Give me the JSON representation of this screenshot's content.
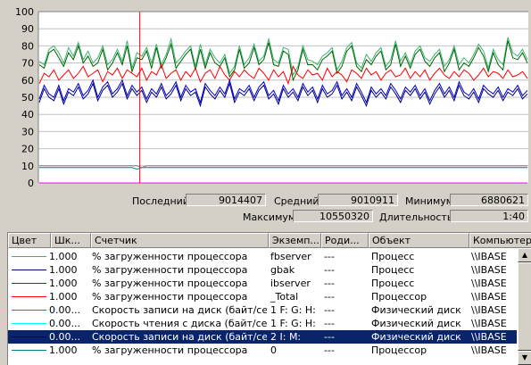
{
  "chart_data": {
    "type": "line",
    "ylim": [
      0,
      100
    ],
    "yticks": [
      "100",
      "90",
      "80",
      "70",
      "60",
      "50",
      "40",
      "30",
      "20",
      "10",
      "0"
    ],
    "grid": true,
    "time_marker_fraction": 0.207,
    "series": [
      {
        "color": "#3cb371",
        "values": [
          71,
          69,
          78,
          80,
          76,
          70,
          79,
          74,
          82,
          72,
          77,
          70,
          73,
          80,
          69,
          72,
          78,
          71,
          83,
          67,
          76,
          74,
          79,
          70,
          81,
          69,
          75,
          84,
          70,
          73,
          77,
          80,
          68,
          81,
          69,
          78,
          73,
          70,
          75,
          64,
          68,
          80,
          69,
          73,
          81,
          71,
          74,
          84,
          72,
          70,
          79,
          78,
          63,
          68,
          80,
          72,
          71,
          69,
          74,
          76,
          79,
          66,
          71,
          79,
          82,
          70,
          67,
          75,
          71,
          76,
          79,
          68,
          72,
          83,
          71,
          76,
          69,
          77,
          80,
          73,
          71,
          75,
          78,
          68,
          72,
          80,
          69,
          73,
          70,
          75,
          81,
          77,
          67,
          78,
          72,
          69,
          85,
          76,
          74,
          78,
          72
        ]
      },
      {
        "color": "#006400",
        "values": [
          69,
          67,
          76,
          78,
          73,
          68,
          76,
          72,
          80,
          70,
          74,
          68,
          70,
          78,
          66,
          70,
          76,
          69,
          80,
          65,
          73,
          72,
          77,
          67,
          79,
          67,
          73,
          81,
          67,
          71,
          75,
          78,
          66,
          78,
          67,
          76,
          70,
          68,
          73,
          62,
          66,
          78,
          67,
          70,
          79,
          69,
          72,
          82,
          69,
          68,
          77,
          75,
          60,
          66,
          78,
          69,
          69,
          66,
          72,
          74,
          77,
          64,
          68,
          77,
          80,
          68,
          65,
          72,
          69,
          74,
          77,
          66,
          69,
          81,
          68,
          74,
          67,
          75,
          78,
          71,
          68,
          73,
          76,
          65,
          70,
          78,
          66,
          70,
          68,
          73,
          79,
          74,
          65,
          76,
          69,
          66,
          83,
          73,
          72,
          76,
          70
        ]
      },
      {
        "color": "#ff0000",
        "values": [
          58,
          64,
          62,
          66,
          60,
          63,
          66,
          61,
          64,
          68,
          62,
          64,
          66,
          59,
          65,
          63,
          67,
          61,
          66,
          64,
          62,
          67,
          60,
          65,
          63,
          69,
          61,
          64,
          66,
          60,
          65,
          62,
          67,
          59,
          64,
          66,
          61,
          68,
          63,
          60,
          65,
          62,
          66,
          63,
          61,
          67,
          64,
          60,
          66,
          62,
          65,
          58,
          68,
          63,
          61,
          66,
          63,
          64,
          60,
          67,
          62,
          65,
          63,
          59,
          66,
          64,
          61,
          67,
          63,
          65,
          60,
          64,
          66,
          62,
          63,
          67,
          61,
          65,
          62,
          66,
          60,
          64,
          67,
          63,
          61,
          65,
          62,
          66,
          64,
          60,
          63,
          67,
          62,
          65,
          64,
          61,
          66,
          62,
          63,
          65,
          61
        ]
      },
      {
        "color": "#000080",
        "values": [
          47,
          55,
          50,
          48,
          55,
          46,
          53,
          51,
          56,
          49,
          52,
          58,
          48,
          54,
          57,
          50,
          53,
          58,
          49,
          55,
          51,
          54,
          47,
          53,
          50,
          56,
          49,
          52,
          57,
          48,
          55,
          51,
          53,
          45,
          56,
          52,
          49,
          54,
          50,
          58,
          47,
          53,
          51,
          55,
          48,
          54,
          57,
          49,
          52,
          46,
          55,
          50,
          53,
          48,
          56,
          51,
          54,
          47,
          55,
          50,
          52,
          57,
          49,
          53,
          48,
          56,
          51,
          45,
          54,
          50,
          53,
          49,
          56,
          52,
          47,
          54,
          51,
          55,
          49,
          53,
          46,
          52,
          56,
          50,
          54,
          48,
          57,
          51,
          49,
          53,
          47,
          55,
          52,
          50,
          54,
          48,
          53,
          51,
          55,
          49,
          52
        ]
      },
      {
        "color": "#0000cd",
        "values": [
          49,
          57,
          52,
          50,
          57,
          48,
          55,
          53,
          58,
          51,
          54,
          60,
          50,
          56,
          59,
          52,
          55,
          60,
          51,
          57,
          53,
          56,
          49,
          55,
          52,
          58,
          51,
          54,
          59,
          50,
          57,
          53,
          55,
          47,
          58,
          54,
          51,
          56,
          52,
          60,
          49,
          55,
          53,
          57,
          50,
          56,
          59,
          51,
          54,
          48,
          57,
          52,
          55,
          50,
          58,
          53,
          56,
          49,
          57,
          52,
          54,
          59,
          51,
          55,
          50,
          58,
          53,
          47,
          56,
          52,
          55,
          51,
          58,
          54,
          49,
          56,
          53,
          57,
          51,
          55,
          48,
          54,
          58,
          52,
          56,
          50,
          59,
          53,
          51,
          55,
          49,
          57,
          54,
          52,
          56,
          50,
          55,
          53,
          57,
          51,
          54
        ]
      },
      {
        "color": "#008080",
        "values": [
          9,
          9,
          9,
          9,
          9,
          9,
          9,
          9,
          9,
          9,
          9,
          9,
          9,
          9,
          9,
          9,
          9,
          9,
          9,
          9,
          8,
          9,
          9,
          9,
          9,
          9,
          9,
          9,
          9,
          9,
          9,
          9,
          9,
          9,
          9,
          9,
          9,
          9,
          9,
          9,
          9,
          9,
          9,
          9,
          9,
          9,
          9,
          9,
          9,
          9,
          9,
          9,
          9,
          9,
          9,
          9,
          9,
          9,
          9,
          9,
          9,
          9,
          9,
          9,
          9,
          9,
          9,
          9,
          9,
          9,
          9,
          9,
          9,
          9,
          9,
          9,
          9,
          9,
          9,
          9,
          9,
          9,
          9,
          9,
          9,
          9,
          9,
          9,
          9,
          9,
          9,
          9,
          9,
          9,
          9,
          9,
          9,
          9,
          9,
          9,
          9
        ]
      },
      {
        "color": "#808080",
        "values": [
          10,
          10,
          10,
          10,
          10,
          10,
          10,
          10,
          10,
          10,
          10,
          10,
          10,
          10,
          10,
          10,
          10,
          10,
          10,
          10,
          10,
          9,
          10,
          10,
          10,
          10,
          10,
          10,
          10,
          10,
          10,
          10,
          10,
          10,
          10,
          10,
          10,
          10,
          10,
          10,
          10,
          10,
          10,
          10,
          10,
          10,
          10,
          10,
          10,
          10,
          10,
          10,
          10,
          10,
          10,
          10,
          10,
          10,
          10,
          10,
          10,
          10,
          10,
          10,
          10,
          10,
          10,
          10,
          10,
          10,
          10,
          10,
          10,
          10,
          10,
          10,
          10,
          10,
          10,
          10,
          10,
          10,
          10,
          10,
          10,
          10,
          10,
          10,
          10,
          10,
          10,
          10,
          10,
          10,
          10,
          10,
          10,
          10,
          10,
          10,
          10
        ]
      },
      {
        "color": "#ff00ff",
        "values": [
          0,
          0,
          0,
          0,
          0,
          0,
          0,
          0,
          0,
          0,
          0,
          0,
          0,
          0,
          0,
          0,
          0,
          0,
          0,
          0,
          0,
          0,
          0,
          0,
          0,
          0,
          0,
          0,
          0,
          0,
          0,
          0,
          0,
          0,
          0,
          0,
          0,
          0,
          0,
          0,
          0,
          0,
          0,
          0,
          0,
          0,
          0,
          0,
          0,
          0,
          0,
          0,
          0,
          0,
          0,
          0,
          0,
          0,
          0,
          0,
          0,
          0,
          0,
          0,
          0,
          0,
          0,
          0,
          0,
          0,
          0,
          0,
          0,
          0,
          0,
          0,
          0,
          0,
          0,
          0,
          0,
          0,
          0,
          0,
          0,
          0,
          0,
          0,
          0,
          0,
          0,
          0,
          0,
          0,
          0,
          0,
          0,
          0,
          0,
          0,
          0
        ]
      }
    ]
  },
  "stats": {
    "last_label": "Последний",
    "last_value": "9014407",
    "avg_label": "Средний",
    "avg_value": "9010911",
    "min_label": "Минимум",
    "min_value": "6880621",
    "max_label": "Максимум",
    "max_value": "10550320",
    "duration_label": "Длительность",
    "duration_value": "1:40"
  },
  "table": {
    "headers": [
      "Цвет",
      "Шк...",
      "Счетчик",
      "Экземп...",
      "Роди...",
      "Объект",
      "Компьютер"
    ],
    "rows": [
      {
        "color": "#3cb371",
        "scale": "1.000",
        "counter": "% загруженности процессора",
        "instance": "fbserver",
        "parent": "---",
        "object": "Процесс",
        "computer": "\\\\IBASE"
      },
      {
        "color": "#000080",
        "scale": "1.000",
        "counter": "% загруженности процессора",
        "instance": "gbak",
        "parent": "---",
        "object": "Процесс",
        "computer": "\\\\IBASE"
      },
      {
        "color": "#006400",
        "scale": "1.000",
        "counter": "% загруженности процессора",
        "instance": "ibserver",
        "parent": "---",
        "object": "Процесс",
        "computer": "\\\\IBASE"
      },
      {
        "color": "#ff0000",
        "scale": "1.000",
        "counter": "% загруженности процессора",
        "instance": "_Total",
        "parent": "---",
        "object": "Процессор",
        "computer": "\\\\IBASE"
      },
      {
        "color": "#ff00ff",
        "scale": "0.00...",
        "counter": "Скорость записи на диск (байт/сек)",
        "instance": "1 F: G: H:",
        "parent": "---",
        "object": "Физический диск",
        "computer": "\\\\IBASE"
      },
      {
        "color": "#00ffff",
        "scale": "0.00...",
        "counter": "Скорость чтения с диска (байт/сек)",
        "instance": "1 F: G: H:",
        "parent": "---",
        "object": "Физический диск",
        "computer": "\\\\IBASE"
      },
      {
        "color": "#000080",
        "scale": "0.00...",
        "counter": "Скорость записи на диск (байт/сек)",
        "instance": "2 I: M:",
        "parent": "---",
        "object": "Физический диск",
        "computer": "\\\\IBASE",
        "selected": true
      },
      {
        "color": "#008080",
        "scale": "1.000",
        "counter": "% загруженности процессора",
        "instance": "0",
        "parent": "---",
        "object": "Процессор",
        "computer": "\\\\IBASE"
      }
    ]
  },
  "scrollbar": {
    "up_glyph": "▲",
    "down_glyph": "▼"
  }
}
